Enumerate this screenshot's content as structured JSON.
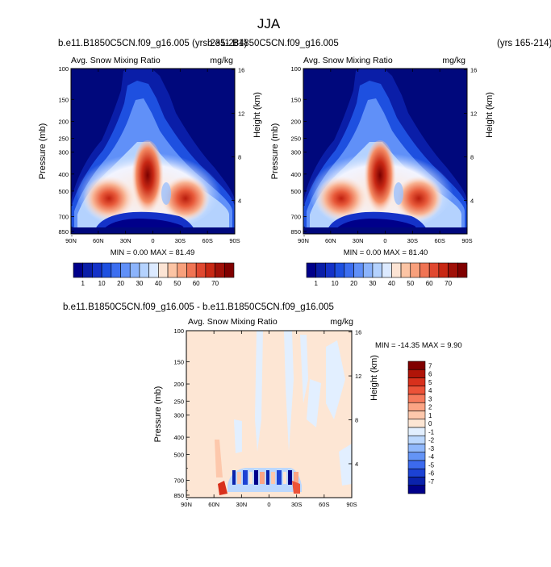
{
  "page": {
    "title": "JJA"
  },
  "chart_data": [
    {
      "type": "heatmap",
      "id": "panel-a",
      "case_title": "b.e11.B1850C5CN.f09_g16.005 (yrs 235-284)",
      "left_label": "Avg. Snow Mixing Ratio",
      "right_label": "mg/kg",
      "ylabel": "Pressure (mb)",
      "y2label": "Height (km)",
      "x_ticks": [
        "90N",
        "60N",
        "30N",
        "0",
        "30S",
        "60S",
        "90S"
      ],
      "y_ticks": [
        "100",
        "150",
        "200",
        "250",
        "300",
        "400",
        "500",
        "700",
        "850"
      ],
      "y2_ticks": [
        "16",
        "12",
        "8",
        "4"
      ],
      "stats": "MIN =   0.00  MAX =  81.49",
      "min": 0.0,
      "max": 81.49
    },
    {
      "type": "heatmap",
      "id": "panel-b",
      "case_title": "b.e11.B1850C5CN.f09_g16.005",
      "years_label": "(yrs 165-214)",
      "left_label": "Avg. Snow Mixing Ratio",
      "right_label": "mg/kg",
      "ylabel": "Pressure (mb)",
      "y2label": "Height (km)",
      "x_ticks": [
        "90N",
        "60N",
        "30N",
        "0",
        "30S",
        "60S",
        "90S"
      ],
      "y_ticks": [
        "100",
        "150",
        "200",
        "250",
        "300",
        "400",
        "500",
        "700",
        "850"
      ],
      "y2_ticks": [
        "16",
        "12",
        "8",
        "4"
      ],
      "stats": "MIN =   0.00  MAX =  81.40",
      "min": 0.0,
      "max": 81.4
    },
    {
      "type": "heatmap",
      "id": "panel-diff",
      "case_title": "b.e11.B1850C5CN.f09_g16.005 - b.e11.B1850C5CN.f09_g16.005",
      "left_label": "Avg. Snow Mixing Ratio",
      "right_label": "mg/kg",
      "ylabel": "Pressure (mb)",
      "y2label": "Height (km)",
      "x_ticks": [
        "90N",
        "60N",
        "30N",
        "0",
        "30S",
        "60S",
        "90S"
      ],
      "y_ticks": [
        "100",
        "150",
        "200",
        "250",
        "300",
        "400",
        "500",
        "700",
        "850"
      ],
      "y2_ticks": [
        "16",
        "12",
        "8",
        "4"
      ],
      "stats": "MIN = -14.35  MAX =   9.90",
      "min": -14.35,
      "max": 9.9
    }
  ],
  "colorbars": {
    "abs": {
      "labels": [
        "1",
        "10",
        "20",
        "30",
        "40",
        "50",
        "60",
        "70"
      ],
      "colors": [
        "#00008a",
        "#0a1ea8",
        "#1432c8",
        "#1e50e0",
        "#3c6ef0",
        "#6090f8",
        "#8cb4fc",
        "#b4d2fe",
        "#dceaff",
        "#fce4d4",
        "#fcc4a4",
        "#f8a07c",
        "#f07454",
        "#e04830",
        "#c82814",
        "#a01008",
        "#800000"
      ]
    },
    "diff": {
      "labels": [
        "7",
        "6",
        "5",
        "4",
        "3",
        "2",
        "1",
        "0",
        "-1",
        "-2",
        "-3",
        "-4",
        "-5",
        "-6",
        "-7"
      ],
      "colors": [
        "#800000",
        "#b01408",
        "#d8301c",
        "#ec5238",
        "#f67a5c",
        "#fba484",
        "#fdc8ac",
        "#fde6d4",
        "#e2efff",
        "#bcd8fe",
        "#90b8fc",
        "#6494f6",
        "#3c6aee",
        "#1c42d4",
        "#0a22ac",
        "#00008a"
      ]
    }
  }
}
